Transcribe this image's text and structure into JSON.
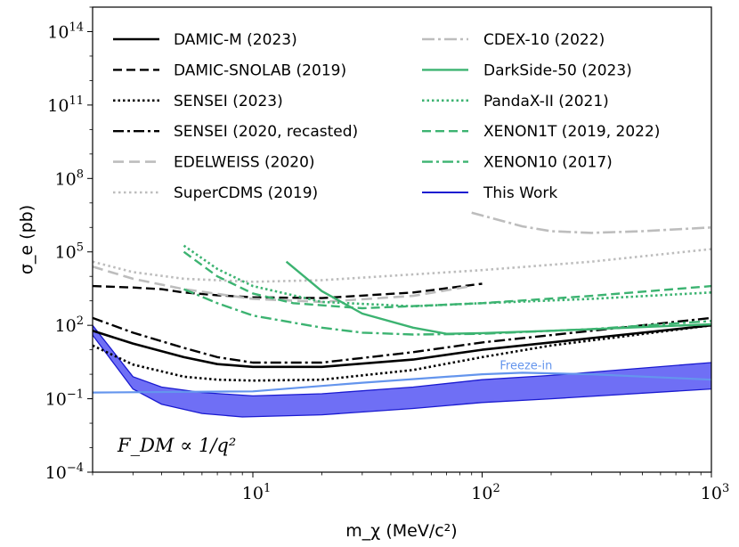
{
  "chart_data": {
    "type": "line",
    "xlabel": "m_χ (MeV/c²)",
    "ylabel": "σ_e (pb)",
    "xscale": "log",
    "yscale": "log",
    "xlim": [
      2,
      1000
    ],
    "ylim": [
      0.0001,
      1000000000000000.0
    ],
    "legend": "top, two columns",
    "annotation": "F_DM ∝ 1/q²",
    "x_ticks": [
      {
        "v": 10,
        "base": "10",
        "exp": "1"
      },
      {
        "v": 100,
        "base": "10",
        "exp": "2"
      },
      {
        "v": 1000,
        "base": "10",
        "exp": "3"
      }
    ],
    "y_ticks": [
      {
        "v": 0.0001,
        "base": "10",
        "exp": "−4"
      },
      {
        "v": 0.1,
        "base": "10",
        "exp": "−1"
      },
      {
        "v": 100,
        "base": "10",
        "exp": "2"
      },
      {
        "v": 100000,
        "base": "10",
        "exp": "5"
      },
      {
        "v": 100000000,
        "base": "10",
        "exp": "8"
      },
      {
        "v": 100000000000,
        "base": "10",
        "exp": "11"
      },
      {
        "v": 100000000000000,
        "base": "10",
        "exp": "14"
      }
    ],
    "series": [
      {
        "name": "DAMIC-M (2023)",
        "color": "#000000",
        "dash": "",
        "width": 2.6,
        "points": [
          [
            2,
            60
          ],
          [
            3,
            18
          ],
          [
            5,
            5
          ],
          [
            7,
            2.6
          ],
          [
            10,
            2.0
          ],
          [
            20,
            2.0
          ],
          [
            50,
            4
          ],
          [
            100,
            10
          ],
          [
            300,
            30
          ],
          [
            1000,
            100
          ]
        ]
      },
      {
        "name": "DAMIC-SNOLAB (2019)",
        "color": "#000000",
        "dash": "10,5",
        "width": 2.4,
        "points": [
          [
            2,
            4000
          ],
          [
            3,
            3500
          ],
          [
            4,
            3000
          ],
          [
            5,
            2200
          ],
          [
            7,
            1700
          ],
          [
            10,
            1400
          ],
          [
            20,
            1300
          ],
          [
            50,
            2200
          ],
          [
            100,
            5000
          ]
        ]
      },
      {
        "name": "SENSEI (2023)",
        "color": "#000000",
        "dash": "2.5,3",
        "width": 2.6,
        "points": [
          [
            2,
            15
          ],
          [
            3,
            2.5
          ],
          [
            5,
            0.8
          ],
          [
            7,
            0.6
          ],
          [
            10,
            0.55
          ],
          [
            20,
            0.6
          ],
          [
            50,
            1.5
          ],
          [
            100,
            5
          ],
          [
            200,
            15
          ],
          [
            1000,
            100
          ]
        ]
      },
      {
        "name": "SENSEI (2020, recasted)",
        "color": "#000000",
        "dash": "12,4,3,4",
        "width": 2.4,
        "points": [
          [
            2,
            200
          ],
          [
            3,
            50
          ],
          [
            5,
            12
          ],
          [
            7,
            5
          ],
          [
            10,
            3
          ],
          [
            20,
            3
          ],
          [
            50,
            8
          ],
          [
            100,
            20
          ],
          [
            300,
            60
          ],
          [
            1000,
            200
          ]
        ]
      },
      {
        "name": "EDELWEISS (2020)",
        "color": "#bdbdbd",
        "dash": "12,6",
        "width": 2.6,
        "points": [
          [
            2,
            25000
          ],
          [
            3,
            8000
          ],
          [
            5,
            3000
          ],
          [
            10,
            1200
          ],
          [
            20,
            900
          ],
          [
            50,
            1600
          ],
          [
            90,
            4000
          ]
        ]
      },
      {
        "name": "SuperCDMS (2019)",
        "color": "#bdbdbd",
        "dash": "2.5,3.5",
        "width": 2.6,
        "points": [
          [
            2,
            40000
          ],
          [
            3,
            15000
          ],
          [
            5,
            8000
          ],
          [
            10,
            6000
          ],
          [
            20,
            7000
          ],
          [
            50,
            12000
          ],
          [
            100,
            18000
          ],
          [
            300,
            40000
          ],
          [
            1000,
            130000
          ]
        ]
      },
      {
        "name": "CDEX-10 (2022)",
        "color": "#bdbdbd",
        "dash": "14,4,3,4",
        "width": 2.6,
        "points": [
          [
            90,
            4000000
          ],
          [
            150,
            1100000
          ],
          [
            200,
            700000
          ],
          [
            300,
            600000
          ],
          [
            500,
            700000
          ],
          [
            1000,
            1000000
          ]
        ]
      },
      {
        "name": "DarkSide-50 (2023)",
        "color": "#3cb371",
        "dash": "",
        "width": 2.4,
        "points": [
          [
            14,
            40000
          ],
          [
            20,
            2500
          ],
          [
            30,
            300
          ],
          [
            50,
            80
          ],
          [
            70,
            45
          ],
          [
            100,
            48
          ],
          [
            200,
            60
          ],
          [
            1000,
            110
          ]
        ]
      },
      {
        "name": "PandaX-II (2021)",
        "color": "#3cb371",
        "dash": "2.5,3",
        "width": 2.6,
        "points": [
          [
            5,
            180000
          ],
          [
            7,
            20000
          ],
          [
            10,
            4000
          ],
          [
            20,
            900
          ],
          [
            50,
            600
          ],
          [
            100,
            800
          ],
          [
            300,
            1200
          ],
          [
            1000,
            2200
          ]
        ]
      },
      {
        "name": "XENON1T (2019, 2022)",
        "color": "#3cb371",
        "dash": "10,5",
        "width": 2.4,
        "points": [
          [
            5,
            100000
          ],
          [
            7,
            10000
          ],
          [
            10,
            2000
          ],
          [
            15,
            800
          ],
          [
            30,
            500
          ],
          [
            100,
            800
          ],
          [
            300,
            1600
          ],
          [
            1000,
            4000
          ]
        ]
      },
      {
        "name": "XENON10 (2017)",
        "color": "#3cb371",
        "dash": "12,4,3,4",
        "width": 2.4,
        "points": [
          [
            5,
            3000
          ],
          [
            7,
            800
          ],
          [
            10,
            250
          ],
          [
            20,
            80
          ],
          [
            30,
            50
          ],
          [
            50,
            42
          ],
          [
            100,
            45
          ],
          [
            300,
            70
          ],
          [
            1000,
            150
          ]
        ]
      },
      {
        "name": "Freeze-in",
        "label": "Freeze-in",
        "color": "#6495ed",
        "dash": "",
        "width": 2.2,
        "points": [
          [
            2,
            0.18
          ],
          [
            10,
            0.2
          ],
          [
            30,
            0.45
          ],
          [
            100,
            1.0
          ],
          [
            150,
            1.15
          ],
          [
            300,
            1.0
          ],
          [
            1000,
            0.6
          ]
        ]
      }
    ],
    "band": {
      "name": "This Work",
      "fill": "#6f6ff5",
      "stroke": "#1a1ad0",
      "upper": [
        [
          2,
          100
        ],
        [
          3,
          0.8
        ],
        [
          4,
          0.3
        ],
        [
          6,
          0.18
        ],
        [
          10,
          0.13
        ],
        [
          20,
          0.16
        ],
        [
          50,
          0.3
        ],
        [
          100,
          0.6
        ],
        [
          200,
          0.9
        ],
        [
          1000,
          3
        ]
      ],
      "lower": [
        [
          2,
          40
        ],
        [
          3,
          0.25
        ],
        [
          4,
          0.06
        ],
        [
          6,
          0.025
        ],
        [
          9,
          0.018
        ],
        [
          20,
          0.022
        ],
        [
          50,
          0.04
        ],
        [
          100,
          0.07
        ],
        [
          200,
          0.1
        ],
        [
          1000,
          0.25
        ]
      ]
    }
  }
}
